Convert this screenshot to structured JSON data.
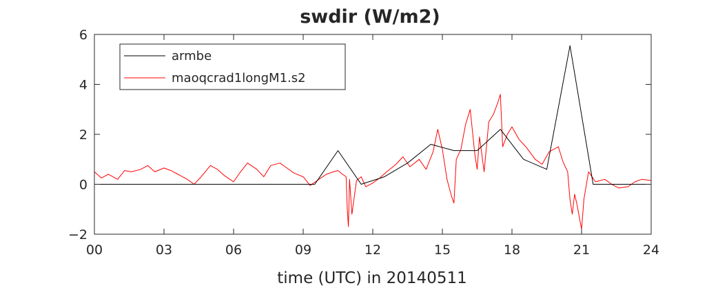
{
  "chart_data": {
    "type": "line",
    "title": "swdir  (W/m2)",
    "xlabel": "time (UTC) in 20140511",
    "ylabel": "",
    "xlim": [
      0,
      24
    ],
    "ylim": [
      -2,
      6
    ],
    "xticks": [
      0,
      3,
      6,
      9,
      12,
      15,
      18,
      21,
      24
    ],
    "xtick_labels": [
      "00",
      "03",
      "06",
      "09",
      "12",
      "15",
      "18",
      "21",
      "24"
    ],
    "yticks": [
      -2,
      0,
      2,
      4,
      6
    ],
    "ytick_labels": [
      "-2",
      "0",
      "2",
      "4",
      "6"
    ],
    "grid": false,
    "legend_position": "top-left",
    "series": [
      {
        "name": "armbe",
        "color": "#000000",
        "x": [
          0,
          1.5,
          4.5,
          7.5,
          9.5,
          10.5,
          11.5,
          12.5,
          13.5,
          14.5,
          15.5,
          16.5,
          17.5,
          18.5,
          19.5,
          20.5,
          21.5,
          22.5,
          24
        ],
        "y": [
          0,
          0,
          0,
          0,
          0,
          1.35,
          0,
          0.3,
          0.85,
          1.6,
          1.35,
          1.35,
          2.2,
          1,
          0.6,
          5.55,
          0,
          0,
          0
        ]
      },
      {
        "name": "maoqcrad1longM1.s2",
        "color": "#ff0000",
        "x": [
          0,
          0.3,
          0.6,
          1.0,
          1.3,
          1.6,
          2.0,
          2.3,
          2.6,
          3.0,
          3.3,
          3.6,
          4.0,
          4.3,
          4.6,
          5.0,
          5.3,
          5.6,
          6.0,
          6.3,
          6.6,
          7.0,
          7.3,
          7.6,
          8.0,
          8.3,
          8.6,
          9.0,
          9.3,
          9.6,
          10.0,
          10.3,
          10.5,
          10.7,
          10.85,
          10.9,
          10.95,
          11.0,
          11.1,
          11.3,
          11.5,
          11.7,
          12.0,
          12.3,
          12.6,
          13.0,
          13.3,
          13.6,
          14.0,
          14.3,
          14.6,
          14.8,
          15.0,
          15.2,
          15.4,
          15.5,
          15.6,
          15.8,
          16.0,
          16.2,
          16.4,
          16.5,
          16.6,
          16.8,
          17.0,
          17.2,
          17.4,
          17.5,
          17.6,
          17.8,
          18.0,
          18.3,
          18.6,
          19.0,
          19.3,
          19.6,
          20.0,
          20.2,
          20.4,
          20.5,
          20.6,
          20.7,
          20.8,
          20.9,
          21.0,
          21.1,
          21.3,
          21.6,
          22.0,
          22.3,
          22.6,
          23.0,
          23.3,
          23.6,
          24.0
        ],
        "y": [
          0.5,
          0.25,
          0.4,
          0.2,
          0.55,
          0.5,
          0.6,
          0.75,
          0.5,
          0.65,
          0.55,
          0.4,
          0.2,
          0.0,
          0.3,
          0.75,
          0.6,
          0.35,
          0.1,
          0.5,
          0.85,
          0.6,
          0.3,
          0.75,
          0.85,
          0.65,
          0.45,
          0.3,
          -0.05,
          0.15,
          0.4,
          0.5,
          0.55,
          0.4,
          0.3,
          -1.0,
          -1.7,
          0.2,
          -1.2,
          0.15,
          0.3,
          -0.1,
          0.05,
          0.25,
          0.5,
          0.8,
          1.1,
          0.7,
          1.0,
          0.6,
          1.3,
          2.2,
          1.4,
          0.2,
          -0.5,
          -0.75,
          1.0,
          1.4,
          2.4,
          3.0,
          1.2,
          0.6,
          1.9,
          0.5,
          2.5,
          2.8,
          3.3,
          3.6,
          1.5,
          2.0,
          2.3,
          1.8,
          1.5,
          1.0,
          0.8,
          1.3,
          1.5,
          0.9,
          0.5,
          -0.6,
          -1.2,
          -0.4,
          -0.8,
          -1.3,
          -1.8,
          -0.6,
          0.5,
          0.1,
          0.2,
          0.0,
          -0.15,
          -0.1,
          0.1,
          0.2,
          0.15
        ]
      }
    ]
  }
}
